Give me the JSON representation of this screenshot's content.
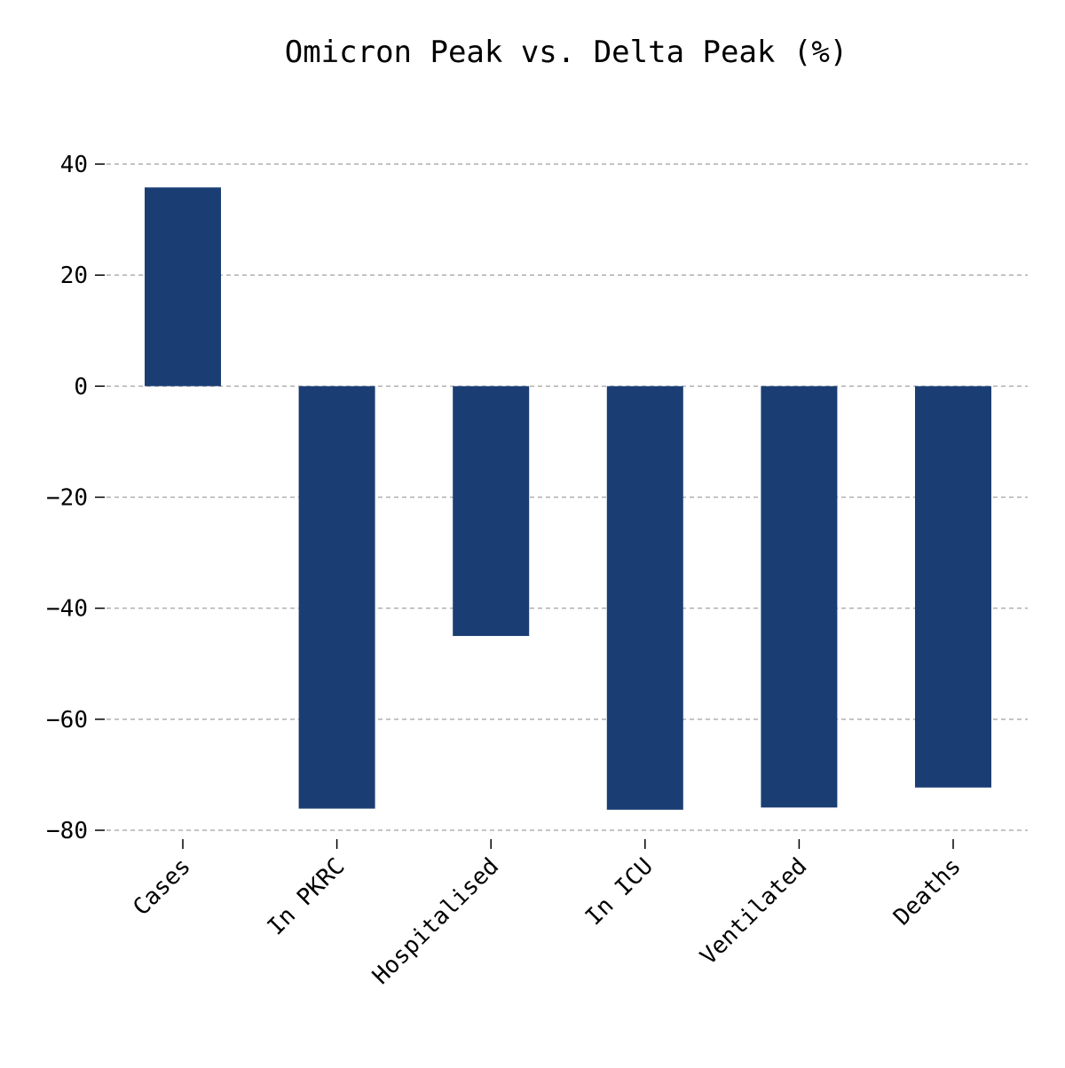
{
  "chart_data": {
    "type": "bar",
    "title": "Omicron Peak vs. Delta Peak (%)",
    "xlabel": "",
    "ylabel": "",
    "categories": [
      "Cases",
      "In PKRC",
      "Hospitalised",
      "In ICU",
      "Ventilated",
      "Deaths"
    ],
    "values": [
      35.8,
      -76.1,
      -45.0,
      -76.3,
      -75.9,
      -72.3
    ],
    "ylim": [
      -82,
      50
    ],
    "yticks": [
      40,
      20,
      0,
      -20,
      -40,
      -60,
      -80
    ],
    "ytick_labels": [
      "40",
      "20",
      "0",
      "−20",
      "−40",
      "−60",
      "−80"
    ],
    "grid": true,
    "legend": "none",
    "bar_color": "#1a3e74"
  }
}
